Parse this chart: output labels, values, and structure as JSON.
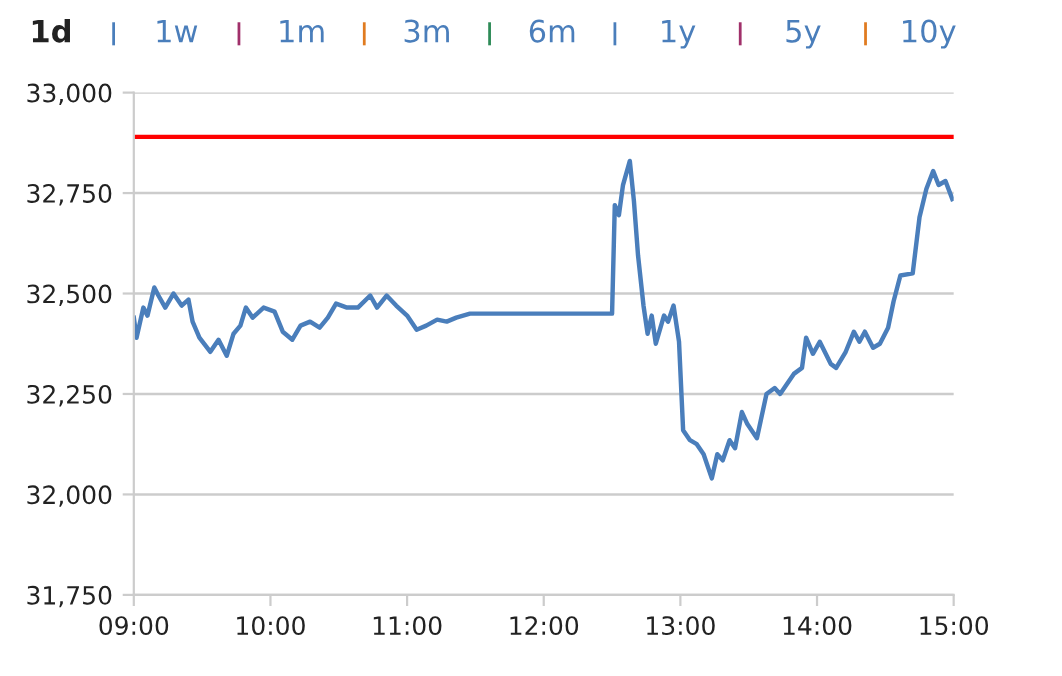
{
  "chart_data": {
    "type": "line",
    "annotations": [
      "1d",
      "1w",
      "1m",
      "3m",
      "6m",
      "1y",
      "5y",
      "10y"
    ],
    "x": [
      9.0,
      9.02,
      9.07,
      9.1,
      9.15,
      9.18,
      9.23,
      9.29,
      9.35,
      9.4,
      9.43,
      9.48,
      9.56,
      9.62,
      9.68,
      9.73,
      9.78,
      9.82,
      9.87,
      9.95,
      10.03,
      10.09,
      10.16,
      10.22,
      10.29,
      10.36,
      10.42,
      10.48,
      10.56,
      10.64,
      10.73,
      10.78,
      10.85,
      10.92,
      11.0,
      11.07,
      11.14,
      11.22,
      11.29,
      11.36,
      11.46,
      12.5,
      12.52,
      12.55,
      12.58,
      12.63,
      12.66,
      12.69,
      12.73,
      12.76,
      12.79,
      12.82,
      12.88,
      12.91,
      12.95,
      12.99,
      13.02,
      13.07,
      13.12,
      13.17,
      13.23,
      13.27,
      13.31,
      13.36,
      13.4,
      13.45,
      13.49,
      13.56,
      13.63,
      13.69,
      13.73,
      13.79,
      13.83,
      13.89,
      13.92,
      13.97,
      14.02,
      14.1,
      14.14,
      14.21,
      14.27,
      14.31,
      14.35,
      14.41,
      14.46,
      14.52,
      14.56,
      14.61,
      14.7,
      14.75,
      14.8,
      14.85,
      14.89,
      14.94,
      14.99
    ],
    "series": [
      {
        "color": "#4a7ebb",
        "values": [
          32440,
          32390,
          32465,
          32445,
          32515,
          32495,
          32465,
          32500,
          32470,
          32485,
          32430,
          32390,
          32355,
          32385,
          32345,
          32400,
          32420,
          32465,
          32440,
          32465,
          32455,
          32405,
          32385,
          32420,
          32430,
          32415,
          32440,
          32475,
          32465,
          32465,
          32495,
          32465,
          32495,
          32470,
          32445,
          32410,
          32420,
          32435,
          32430,
          32440,
          32450,
          32450,
          32720,
          32695,
          32770,
          32830,
          32730,
          32595,
          32470,
          32400,
          32445,
          32375,
          32445,
          32430,
          32470,
          32380,
          32160,
          32135,
          32125,
          32100,
          32040,
          32100,
          32085,
          32135,
          32115,
          32205,
          32175,
          32140,
          32250,
          32265,
          32250,
          32280,
          32300,
          32315,
          32390,
          32350,
          32380,
          32325,
          32315,
          32355,
          32405,
          32380,
          32405,
          32365,
          32375,
          32415,
          32480,
          32545,
          32550,
          32690,
          32760,
          32805,
          32770,
          32780,
          32735
        ]
      }
    ],
    "xlim": [
      9,
      15
    ],
    "xticks": [
      {
        "value": 9,
        "label": "09:00"
      },
      {
        "value": 10,
        "label": "10:00"
      },
      {
        "value": 11,
        "label": "11:00"
      },
      {
        "value": 12,
        "label": "12:00"
      },
      {
        "value": 13,
        "label": "13:00"
      },
      {
        "value": 14,
        "label": "14:00"
      },
      {
        "value": 15,
        "label": "15:00"
      }
    ],
    "ylim": [
      31750,
      33000
    ],
    "yticks": [
      {
        "value": 31750,
        "label": "31,750"
      },
      {
        "value": 32000,
        "label": "32,000"
      },
      {
        "value": 32250,
        "label": "32,250"
      },
      {
        "value": 32500,
        "label": "32,500"
      },
      {
        "value": 32750,
        "label": "32,750"
      },
      {
        "value": 33000,
        "label": "33,000"
      }
    ],
    "ref_lines": [
      {
        "axis": "y",
        "value": 32890,
        "color": "#ff0000"
      }
    ],
    "grid": "y",
    "marker": "none",
    "line_style": "solid"
  }
}
